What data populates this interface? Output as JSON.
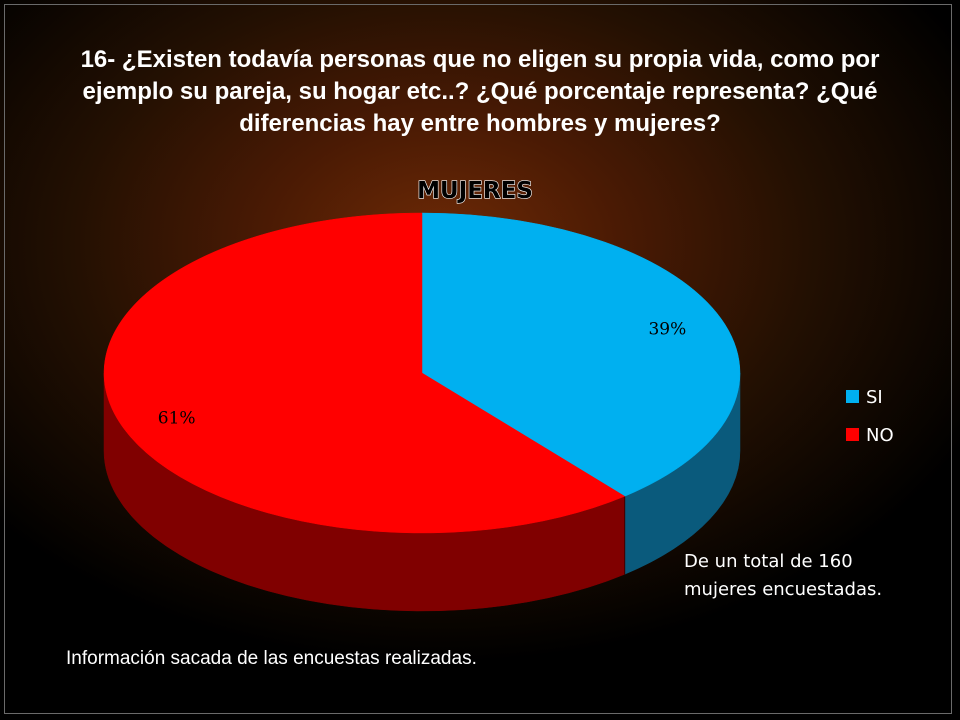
{
  "title": "16- ¿Existen todavía personas que no eligen su propia vida, como por ejemplo su pareja, su hogar etc..? ¿Qué porcentaje representa? ¿Qué diferencias hay entre hombres y mujeres?",
  "note": "De un total de 160 mujeres encuestadas.",
  "footer": "Información sacada de las encuestas realizadas.",
  "chart_data": {
    "type": "pie",
    "title": "MUJERES",
    "style": "3d",
    "legend_position": "right",
    "slices": [
      {
        "label": "SI",
        "value": 39,
        "data_label": "39%",
        "color": "#00b0f0",
        "side_color": "#0a5a7c"
      },
      {
        "label": "NO",
        "value": 61,
        "data_label": "61%",
        "color": "#ff0000",
        "side_color": "#800000"
      }
    ]
  }
}
